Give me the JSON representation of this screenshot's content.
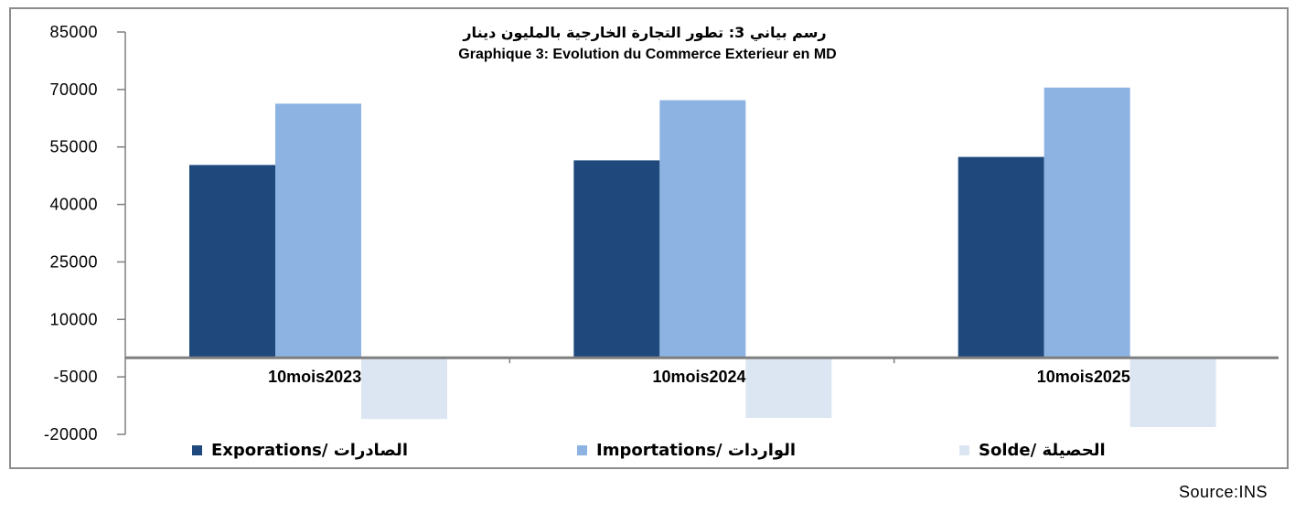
{
  "chart_data": {
    "type": "bar",
    "title": "رسم بياني 3: تطور التجارة الخارجية بالمليون دينار",
    "subtitle": "Graphique 3: Evolution du Commerce Exterieur en MD",
    "categories": [
      "10mois2023",
      "10mois2024",
      "10mois2025"
    ],
    "series": [
      {
        "name": "Exporations/ الصادرات",
        "values": [
          50300,
          51500,
          52400
        ],
        "color": "#1f497d"
      },
      {
        "name": "Importations/ الواردات",
        "values": [
          66300,
          67200,
          70500
        ],
        "color": "#8db3e2"
      },
      {
        "name": "Solde/ الحصيلة",
        "values": [
          -16000,
          -15700,
          -18100
        ],
        "color": "#dce6f2"
      }
    ],
    "ylim": [
      -20000,
      85000
    ],
    "yticks": [
      85000,
      70000,
      55000,
      40000,
      25000,
      10000,
      -5000,
      -20000
    ],
    "grid": false,
    "legend_position": "bottom"
  },
  "source": "Source:INS"
}
